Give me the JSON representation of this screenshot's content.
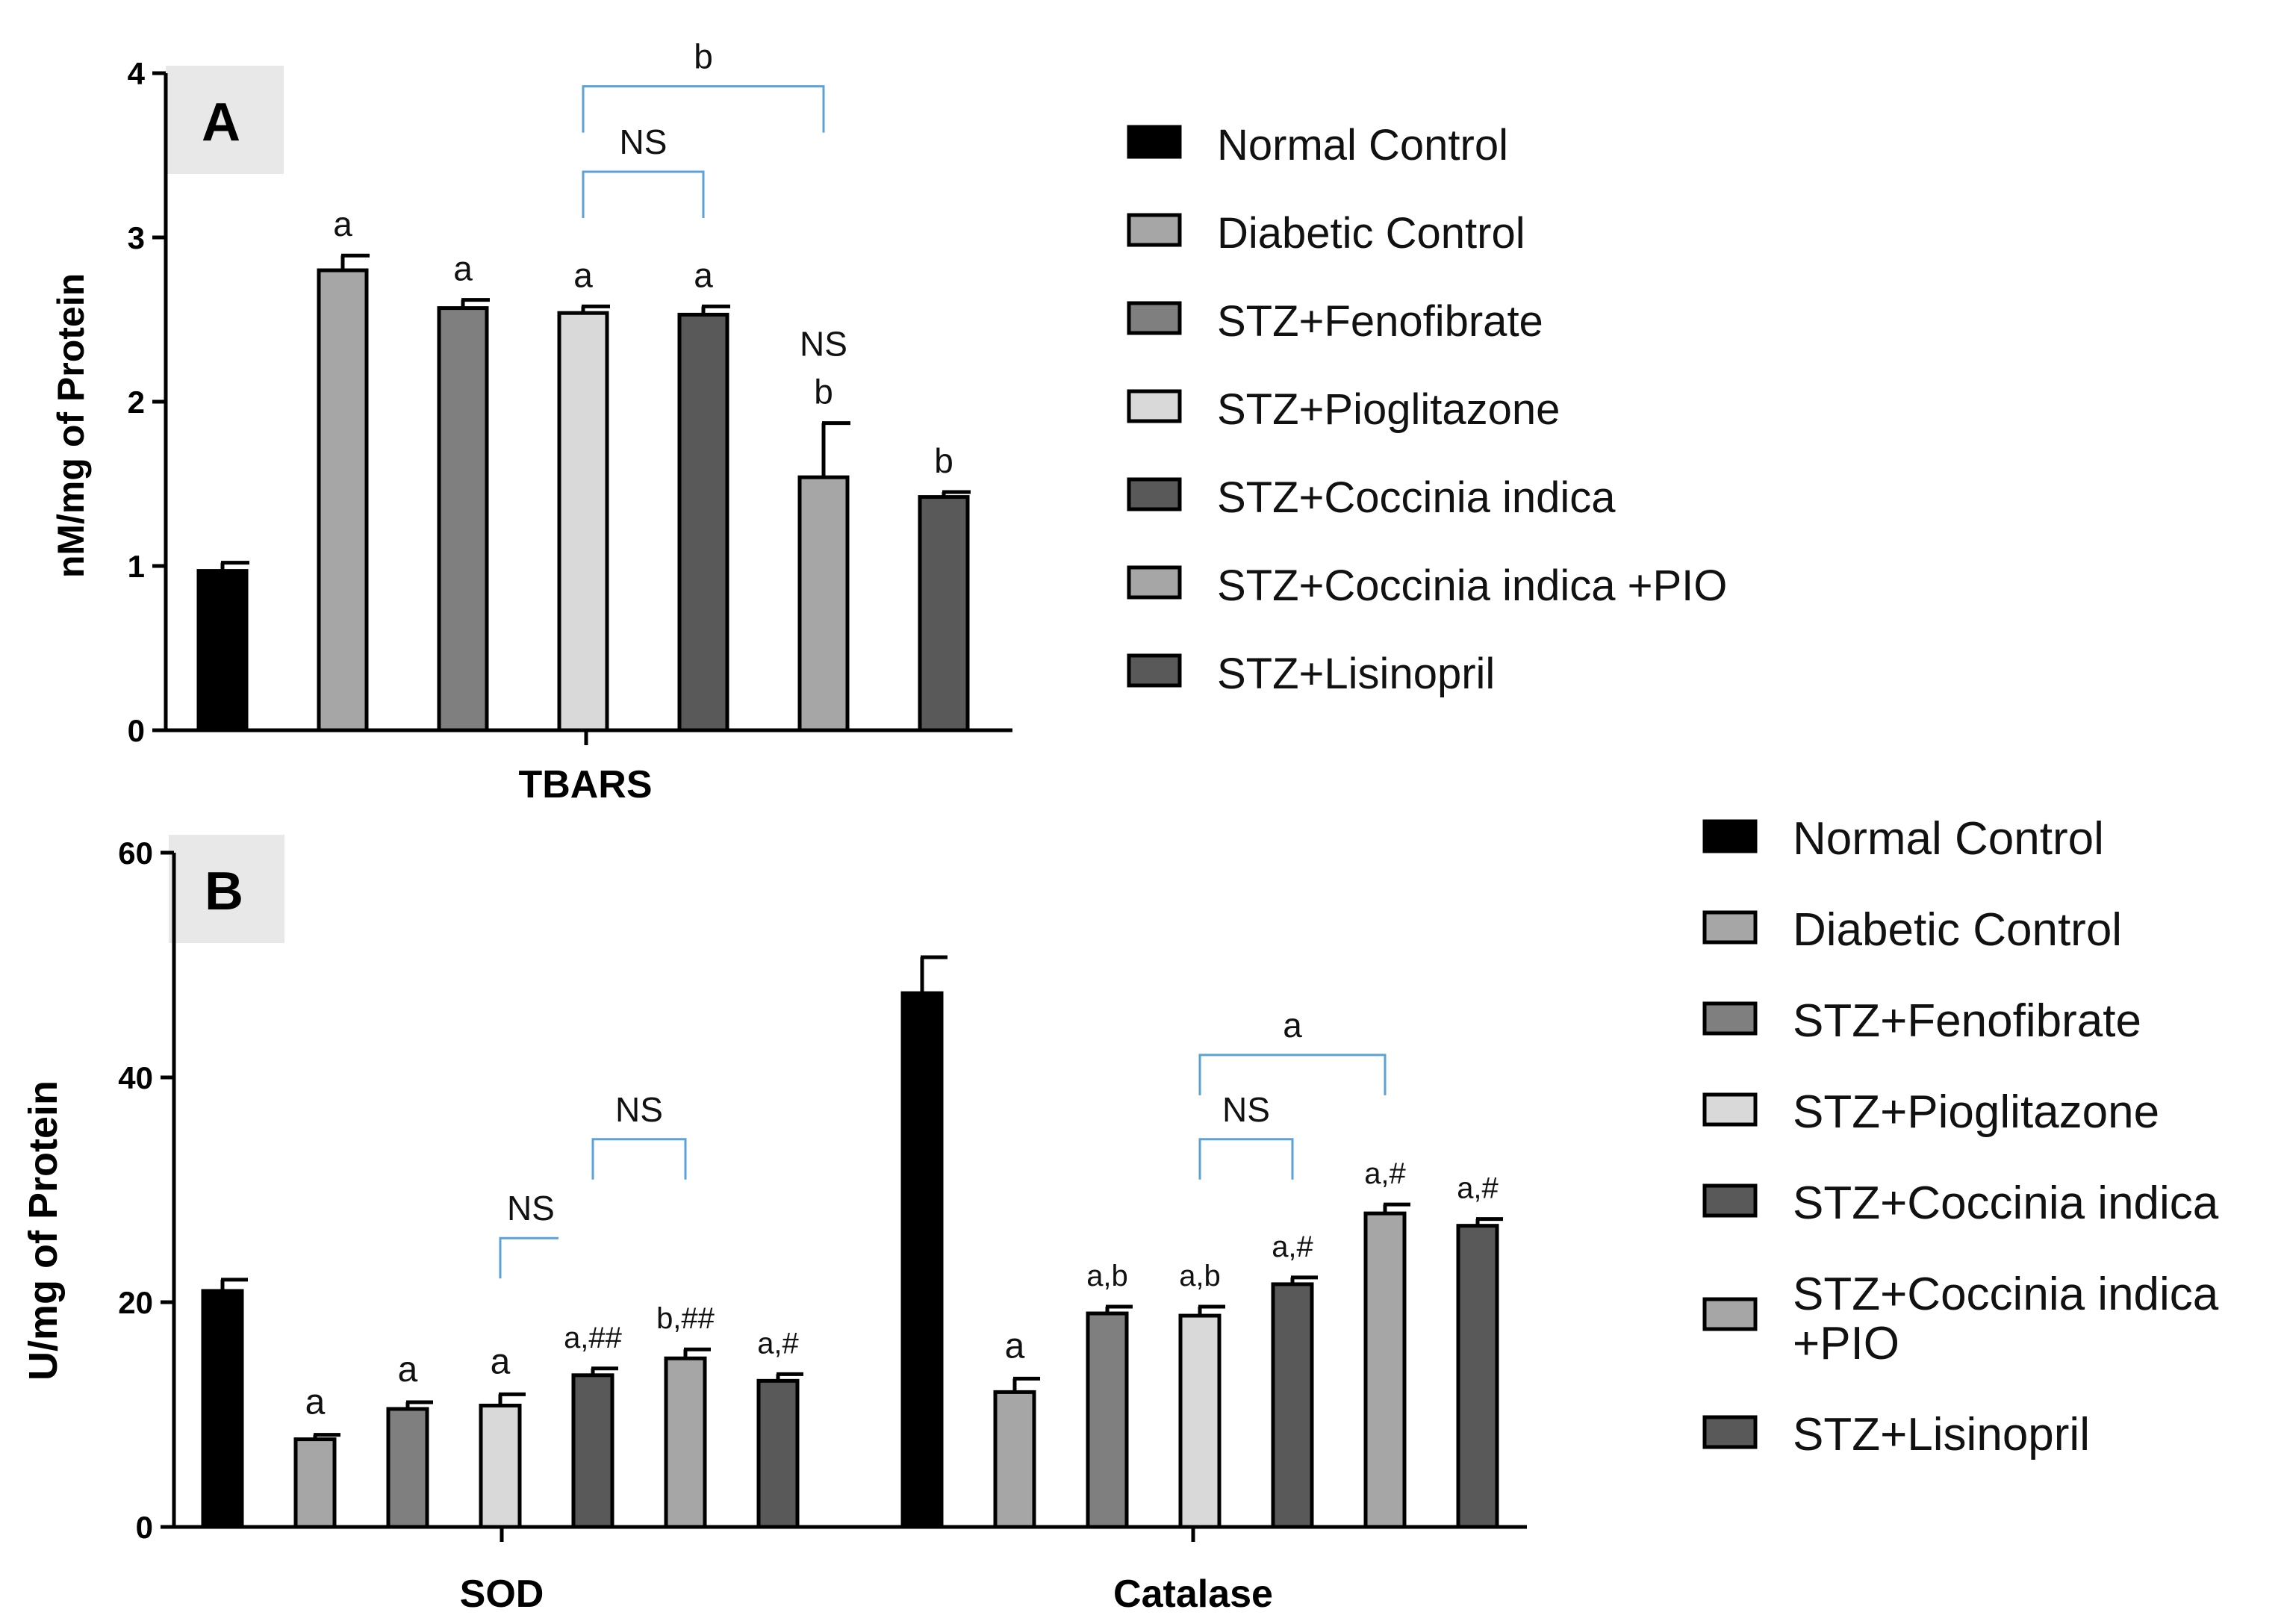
{
  "colors": {
    "Normal Control": "#000000",
    "Diabetic Control": "#a6a6a6",
    "STZ+Fenofibrate": "#7f7f7f",
    "STZ+Pioglitazone": "#d9d9d9",
    "STZ+Coccinia indica": "#595959",
    "STZ+Coccinia indica +PIO": "#a6a6a6",
    "STZ+Lisinopril": "#595959",
    "bracket": "#5ba3d6",
    "panel_label_bg": "#e8e8e8"
  },
  "chart_data": [
    {
      "panel": "A",
      "type": "bar",
      "ylabel": "nM/mg of Protein",
      "ylim": [
        0,
        4
      ],
      "yticks": [
        0,
        1,
        2,
        3,
        4
      ],
      "categories": [
        "TBARS"
      ],
      "series": [
        {
          "name": "Normal Control",
          "values": [
            0.97
          ],
          "error": [
            0.05
          ],
          "annotation": ""
        },
        {
          "name": "Diabetic Control",
          "values": [
            2.8
          ],
          "error": [
            0.09
          ],
          "annotation": "a"
        },
        {
          "name": "STZ+Fenofibrate",
          "values": [
            2.57
          ],
          "error": [
            0.05
          ],
          "annotation": "a"
        },
        {
          "name": "STZ+Pioglitazone",
          "values": [
            2.54
          ],
          "error": [
            0.04
          ],
          "annotation": "a"
        },
        {
          "name": "STZ+Coccinia indica",
          "values": [
            2.53
          ],
          "error": [
            0.05
          ],
          "annotation": "a"
        },
        {
          "name": "STZ+Coccinia indica +PIO",
          "values": [
            1.54
          ],
          "error": [
            0.33
          ],
          "annotation": "b",
          "annotation2": "NS"
        },
        {
          "name": "STZ+Lisinopril",
          "values": [
            1.42
          ],
          "error": [
            0.03
          ],
          "annotation": "b"
        }
      ],
      "brackets": [
        {
          "from": 3,
          "to": 4,
          "label": "NS",
          "level": 3.4
        },
        {
          "from": 3,
          "to": 5,
          "label": "b",
          "level": 3.92
        }
      ],
      "legend": [
        "Normal Control",
        "Diabetic Control",
        "STZ+Fenofibrate",
        "STZ+Pioglitazone",
        "STZ+Coccinia indica",
        "STZ+Coccinia indica +PIO",
        "STZ+Lisinopril"
      ]
    },
    {
      "panel": "B",
      "type": "bar",
      "ylabel": "U/mg of Protein",
      "ylim": [
        0,
        60
      ],
      "yticks": [
        0,
        20,
        40,
        60
      ],
      "categories": [
        "SOD",
        "Catalase"
      ],
      "series": [
        {
          "name": "Normal Control",
          "values": [
            21.0,
            47.5
          ],
          "error": [
            1.0,
            3.2
          ],
          "annotations": [
            "",
            ""
          ]
        },
        {
          "name": "Diabetic Control",
          "values": [
            7.8,
            12.0
          ],
          "error": [
            0.4,
            1.2
          ],
          "annotations": [
            "a",
            "a"
          ]
        },
        {
          "name": "STZ+Fenofibrate",
          "values": [
            10.5,
            19.0
          ],
          "error": [
            0.6,
            0.6
          ],
          "annotations": [
            "a",
            "a,b"
          ]
        },
        {
          "name": "STZ+Pioglitazone",
          "values": [
            10.8,
            18.8
          ],
          "error": [
            1.0,
            0.8
          ],
          "annotations": [
            "a",
            "a,b"
          ]
        },
        {
          "name": "STZ+Coccinia indica",
          "values": [
            13.5,
            21.6
          ],
          "error": [
            0.6,
            0.6
          ],
          "annotations": [
            "a,##",
            "a,#"
          ]
        },
        {
          "name": "STZ+Coccinia indica +PIO",
          "values": [
            15.0,
            27.9
          ],
          "error": [
            0.8,
            0.8
          ],
          "annotations": [
            "b,##",
            "a,#"
          ]
        },
        {
          "name": "STZ+Lisinopril",
          "values": [
            13.0,
            26.8
          ],
          "error": [
            0.6,
            0.6
          ],
          "annotations": [
            "a,#",
            "a,#"
          ]
        }
      ],
      "brackets": [
        {
          "category": 0,
          "from": 3,
          "to": 4,
          "label": "NS",
          "level": 25.7,
          "partial": true
        },
        {
          "category": 0,
          "from": 4,
          "to": 5,
          "label": "NS",
          "level": 34.5
        },
        {
          "category": 1,
          "from": 3,
          "to": 4,
          "label": "NS",
          "level": 34.5
        },
        {
          "category": 1,
          "from": 3,
          "to": 5,
          "label": "a",
          "level": 42.0
        }
      ],
      "legend": [
        "Normal Control",
        "Diabetic Control",
        "STZ+Fenofibrate",
        "STZ+Pioglitazone",
        "STZ+Coccinia indica",
        "STZ+Coccinia indica\n+PIO",
        "STZ+Lisinopril"
      ]
    }
  ]
}
